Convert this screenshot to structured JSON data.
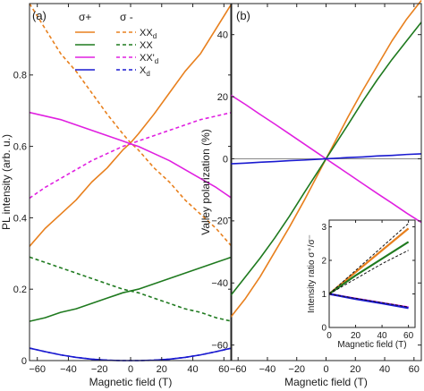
{
  "figure": {
    "panel_a": {
      "label": "(a)",
      "legend_header_plus": "σ+",
      "legend_header_minus": "σ -",
      "legend_entries": [
        {
          "key": "XX_d",
          "label": "XX",
          "sub": "d",
          "color": "#e8801e"
        },
        {
          "key": "XX",
          "label": "XX",
          "sub": "",
          "color": "#1f7a1f"
        },
        {
          "key": "XXp_d",
          "label": "XX'",
          "sub": "d",
          "color": "#e020e0"
        },
        {
          "key": "X_d",
          "label": "X",
          "sub": "d",
          "color": "#1a1ad0"
        }
      ]
    },
    "panel_b": {
      "label": "(b)",
      "inset_ylabel": "Intensity ratio σ⁺/σ⁻",
      "inset_xlabel": "Magnetic field (T)"
    }
  },
  "colors": {
    "XX_d": "#e8801e",
    "XX": "#1f7a1f",
    "XXp_d": "#e020e0",
    "X_d": "#1a1ad0",
    "zero_line": "#888888"
  },
  "chart_data": [
    {
      "type": "line",
      "panel": "a",
      "xlabel": "Magnetic field (T)",
      "ylabel": "PL intensity (arb. u.)",
      "xlim": [
        -65,
        65
      ],
      "ylim": [
        0,
        1.0
      ],
      "xticks": [
        -60,
        -40,
        -20,
        0,
        20,
        40,
        60
      ],
      "yticks": [
        0,
        0.2,
        0.4,
        0.6,
        0.8
      ],
      "x": [
        -65,
        -55,
        -45,
        -35,
        -25,
        -15,
        -5,
        0,
        5,
        15,
        25,
        35,
        45,
        55,
        65
      ],
      "series": [
        {
          "name": "XX_d σ+",
          "color_key": "XX_d",
          "dash": false,
          "values": [
            0.32,
            0.37,
            0.41,
            0.45,
            0.5,
            0.54,
            0.59,
            0.61,
            0.635,
            0.69,
            0.75,
            0.81,
            0.86,
            0.93,
            1.0
          ]
        },
        {
          "name": "XX_d σ-",
          "color_key": "XX_d",
          "dash": true,
          "values": [
            1.0,
            0.93,
            0.86,
            0.81,
            0.75,
            0.69,
            0.635,
            0.61,
            0.59,
            0.54,
            0.5,
            0.45,
            0.41,
            0.37,
            0.32
          ]
        },
        {
          "name": "XX σ+",
          "color_key": "XX",
          "dash": false,
          "values": [
            0.11,
            0.12,
            0.135,
            0.145,
            0.16,
            0.175,
            0.19,
            0.195,
            0.2,
            0.215,
            0.23,
            0.245,
            0.26,
            0.275,
            0.29
          ]
        },
        {
          "name": "XX σ-",
          "color_key": "XX",
          "dash": true,
          "values": [
            0.29,
            0.275,
            0.26,
            0.245,
            0.23,
            0.215,
            0.2,
            0.195,
            0.19,
            0.175,
            0.16,
            0.145,
            0.135,
            0.12,
            0.11
          ]
        },
        {
          "name": "XX'_d σ+",
          "color_key": "XXp_d",
          "dash": false,
          "values": [
            0.695,
            0.685,
            0.675,
            0.66,
            0.645,
            0.63,
            0.615,
            0.607,
            0.6,
            0.58,
            0.56,
            0.535,
            0.51,
            0.485,
            0.455
          ]
        },
        {
          "name": "XX'_d σ-",
          "color_key": "XXp_d",
          "dash": true,
          "values": [
            0.455,
            0.485,
            0.51,
            0.535,
            0.56,
            0.58,
            0.6,
            0.607,
            0.615,
            0.63,
            0.645,
            0.66,
            0.675,
            0.685,
            0.695
          ]
        },
        {
          "name": "X_d σ+",
          "color_key": "X_d",
          "dash": false,
          "values": [
            0.035,
            0.025,
            0.016,
            0.009,
            0.004,
            0.001,
            0.0,
            0.0,
            0.0,
            0.001,
            0.004,
            0.009,
            0.016,
            0.025,
            0.035
          ]
        },
        {
          "name": "X_d σ-",
          "color_key": "X_d",
          "dash": true,
          "values": [
            0.035,
            0.025,
            0.016,
            0.009,
            0.004,
            0.001,
            0.0,
            0.0,
            0.0,
            0.001,
            0.004,
            0.009,
            0.016,
            0.025,
            0.035
          ]
        }
      ]
    },
    {
      "type": "line",
      "panel": "b",
      "xlabel": "Magnetic field (T)",
      "ylabel": "Valley polarization (%)",
      "xlim": [
        -65,
        65
      ],
      "ylim": [
        -65,
        50
      ],
      "xticks": [
        -60,
        -40,
        -20,
        0,
        20,
        40,
        60
      ],
      "yticks": [
        -60,
        -40,
        -20,
        0,
        20,
        40
      ],
      "x": [
        -65,
        -55,
        -45,
        -35,
        -25,
        -15,
        -5,
        0,
        5,
        15,
        25,
        35,
        45,
        55,
        65
      ],
      "series": [
        {
          "name": "XX_d",
          "color_key": "XX_d",
          "values": [
            -51,
            -45,
            -38,
            -30,
            -22,
            -13.5,
            -4.5,
            0,
            4.5,
            13.5,
            22,
            30,
            38,
            45,
            51
          ]
        },
        {
          "name": "XX",
          "color_key": "XX",
          "values": [
            -44,
            -38,
            -32,
            -25.5,
            -18.5,
            -11,
            -3.7,
            0,
            3.7,
            11,
            18.5,
            25.5,
            32,
            38,
            44
          ]
        },
        {
          "name": "XX'_d",
          "color_key": "XXp_d",
          "values": [
            20.5,
            17.5,
            14.3,
            11.2,
            8.0,
            4.8,
            1.6,
            0,
            -1.6,
            -4.8,
            -8.0,
            -11.2,
            -14.3,
            -17.5,
            -20.5
          ]
        },
        {
          "name": "X_d",
          "color_key": "X_d",
          "values": [
            -1.6,
            -1.4,
            -1.1,
            -0.9,
            -0.6,
            -0.4,
            -0.12,
            0,
            0.12,
            0.4,
            0.6,
            0.9,
            1.1,
            1.4,
            1.6
          ]
        }
      ],
      "reference_line": 0
    },
    {
      "type": "line",
      "panel": "b-inset",
      "xlabel": "Magnetic field (T)",
      "ylabel": "Intensity ratio σ⁺/σ⁻",
      "xlim": [
        0,
        65
      ],
      "ylim": [
        0,
        3.2
      ],
      "xticks": [
        0,
        20,
        40,
        60
      ],
      "yticks": [
        0,
        1,
        2,
        3
      ],
      "x": [
        0,
        20,
        40,
        60
      ],
      "series": [
        {
          "name": "XX_d",
          "color_key": "XX_d",
          "values": [
            1.0,
            1.65,
            2.3,
            2.95
          ]
        },
        {
          "name": "XX",
          "color_key": "XX",
          "values": [
            1.0,
            1.55,
            2.05,
            2.55
          ]
        },
        {
          "name": "XX'_d",
          "color_key": "XXp_d",
          "values": [
            1.0,
            0.86,
            0.73,
            0.6
          ]
        },
        {
          "name": "X_d",
          "color_key": "X_d",
          "values": [
            1.0,
            0.85,
            0.72,
            0.58
          ]
        }
      ],
      "fits": [
        {
          "name": "XX_d fit",
          "values": [
            1.0,
            1.7,
            2.4,
            3.1
          ]
        },
        {
          "name": "XX fit",
          "values": [
            1.0,
            1.45,
            1.9,
            2.3
          ]
        },
        {
          "name": "XX'_d fit",
          "values": [
            1.0,
            0.87,
            0.74,
            0.61
          ]
        }
      ]
    }
  ]
}
